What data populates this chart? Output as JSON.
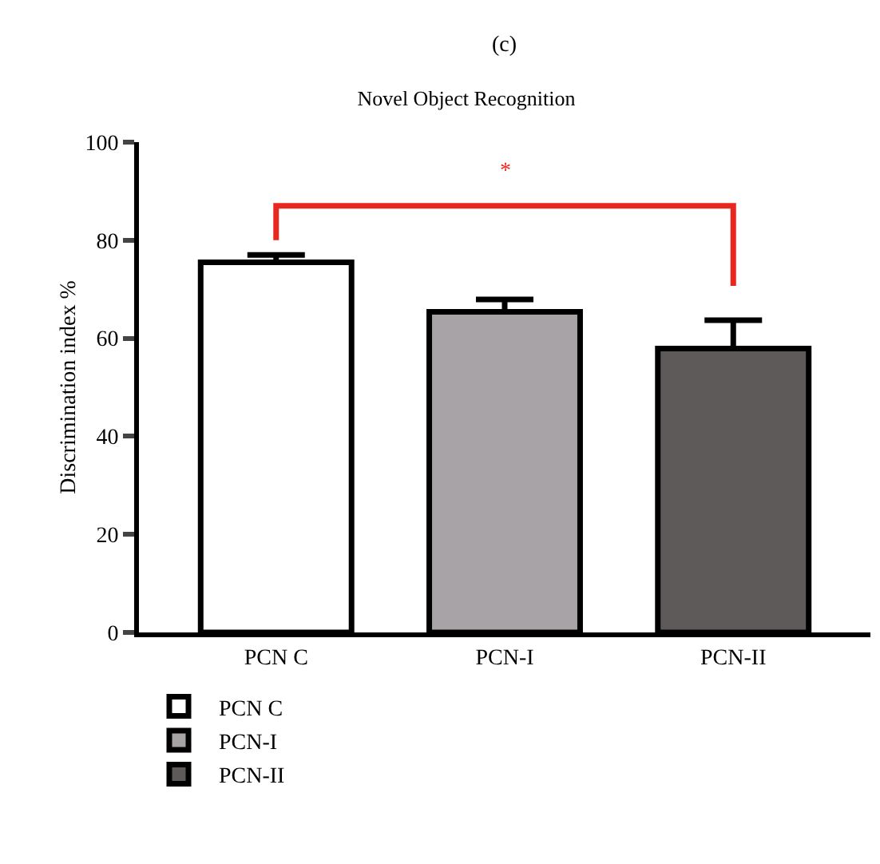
{
  "chart_data": {
    "type": "bar",
    "title": "Novel Object Recognition",
    "ylabel": "Discrimination index %",
    "categories": [
      "PCN C",
      "PCN-I",
      "PCN-II"
    ],
    "series": [
      {
        "name": "PCN C",
        "color": "#ffffff",
        "values": [
          75.5,
          null,
          null
        ],
        "errors": [
          [
            75.5,
            77
          ],
          null,
          null
        ]
      },
      {
        "name": "PCN-I",
        "color": "#a7a3a6",
        "values": [
          null,
          65.4,
          null
        ],
        "errors": [
          null,
          [
            65.4,
            67.9
          ],
          null
        ]
      },
      {
        "name": "PCN-II",
        "color": "#5e5a59",
        "values": [
          null,
          null,
          57.9
        ],
        "errors": [
          null,
          null,
          [
            57.9,
            63.7
          ]
        ]
      }
    ],
    "ylim": [
      0,
      100
    ],
    "yticks": [
      0,
      20,
      40,
      60,
      80,
      100
    ],
    "grid": false,
    "legend": "bottom left",
    "annotations": [
      "(c)",
      "*"
    ]
  }
}
